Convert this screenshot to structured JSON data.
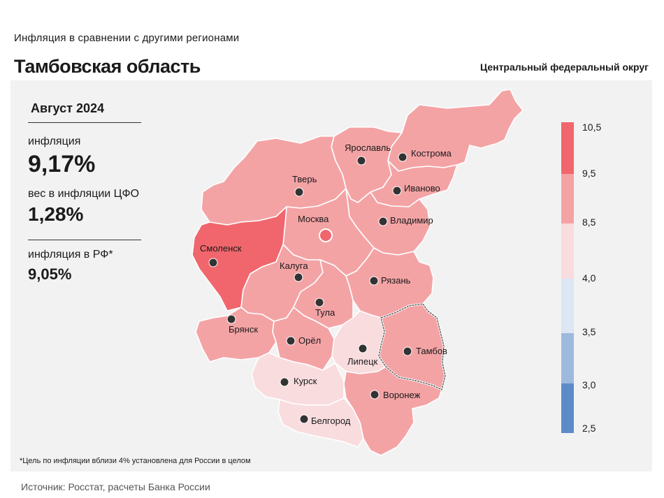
{
  "header": {
    "subtitle": "Инфляция  в сравнении  с другими  регионами",
    "title": "Тамбовская область",
    "district": "Центральный федеральный округ"
  },
  "stats": {
    "period": "Август 2024",
    "inflation_label": "инфляция",
    "inflation_value": "9,17%",
    "weight_label": "вес в инфляции  ЦФО",
    "weight_value": "1,28%",
    "rf_label": "инфляция  в РФ*",
    "rf_value": "9,05%"
  },
  "footnote": "*Цель по инфляции вблизи 4% установлена для России в целом",
  "source": "Источник: Росстат, расчеты Банка России",
  "legend": {
    "labels": [
      "10,5",
      "9,5",
      "8,5",
      "4,0",
      "3,5",
      "3,0",
      "2,5"
    ],
    "colors": [
      "#f0666c",
      "#f4a3a5",
      "#f9dcde",
      "#dde6f3",
      "#9db9dd",
      "#5b8cc8"
    ]
  },
  "colors": {
    "class_9_5_10_5": "#f0666c",
    "class_8_5_9_5": "#f4a3a5",
    "class_4_0_8_5": "#f9dcde",
    "border_white": "#ffffff",
    "highlight_border": "#444444"
  },
  "regions": {
    "kostroma": "Кострома",
    "yaroslavl": "Ярославль",
    "ivanovo": "Иваново",
    "tver": "Тверь",
    "vladimir": "Владимир",
    "moscow": "Москва",
    "smolensk": "Смоленск",
    "kaluga": "Калуга",
    "ryazan": "Рязань",
    "tula": "Тула",
    "bryansk": "Брянск",
    "orel": "Орёл",
    "lipetsk": "Липецк",
    "tambov": "Тамбов",
    "kursk": "Курск",
    "voronezh": "Воронеж",
    "belgorod": "Белгород"
  }
}
